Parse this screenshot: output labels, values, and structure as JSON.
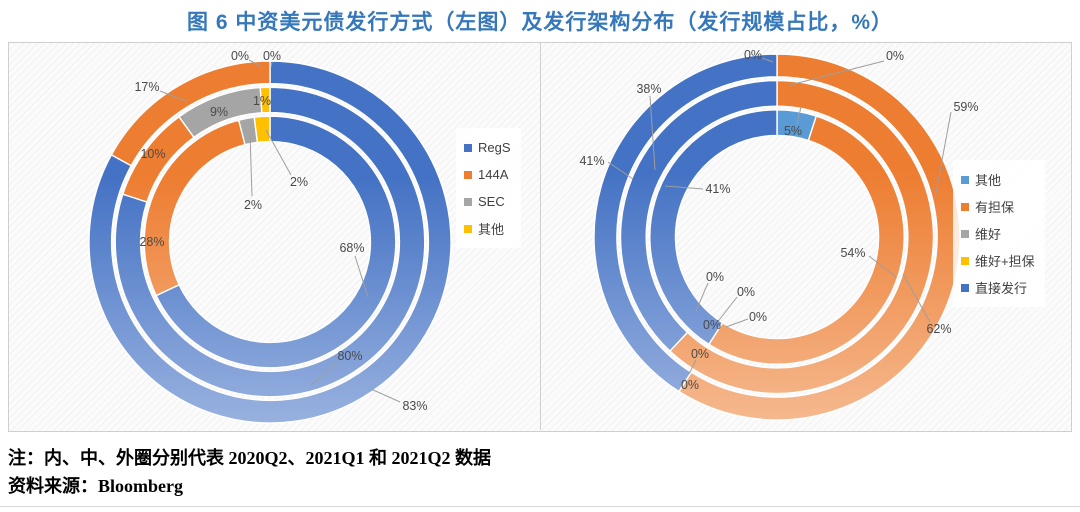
{
  "title": "图 6 中资美元债发行方式（左图）及发行架构分布（发行规模占比，%）",
  "notes": {
    "line1": "注：内、中、外圈分别代表 2020Q2、2021Q1 和 2021Q2 数据",
    "line2": "资料来源：Bloomberg"
  },
  "style": {
    "title_color": "#3577BB",
    "label_color": "#4a4a4a",
    "leader_color": "#9e9e9e",
    "ring_gradient_lighten": 0.45
  },
  "chart_data": [
    {
      "type": "donut",
      "name": "发行方式（左图）",
      "legend_position": "right",
      "rings_meaning": [
        "内圈 = 2020Q2",
        "中圈 = 2021Q1",
        "外圈 = 2021Q2"
      ],
      "series": [
        "RegS",
        "144A",
        "SEC",
        "其他"
      ],
      "series_colors": [
        "#4472C4",
        "#ED7D31",
        "#A5A5A5",
        "#FFC000"
      ],
      "rings": [
        {
          "name": "2020Q2",
          "position": "inner",
          "values": [
            68,
            28,
            2,
            2
          ]
        },
        {
          "name": "2021Q1",
          "position": "middle",
          "values": [
            80,
            10,
            9,
            1
          ]
        },
        {
          "name": "2021Q2",
          "position": "outer",
          "values": [
            83,
            17,
            0,
            0
          ]
        }
      ],
      "unit": "%"
    },
    {
      "type": "donut",
      "name": "发行架构分布",
      "legend_position": "right",
      "rings_meaning": [
        "内圈 = 2020Q2",
        "中圈 = 2021Q1",
        "外圈 = 2021Q2"
      ],
      "series": [
        "其他",
        "有担保",
        "维好",
        "维好+担保",
        "直接发行"
      ],
      "series_colors": [
        "#5B9BD5",
        "#ED7D31",
        "#A5A5A5",
        "#FFC000",
        "#4472C4"
      ],
      "rings": [
        {
          "name": "2020Q2",
          "position": "inner",
          "values": [
            5,
            54,
            0,
            0,
            41
          ]
        },
        {
          "name": "2021Q1",
          "position": "middle",
          "values": [
            0,
            62,
            0,
            0,
            38
          ]
        },
        {
          "name": "2021Q2",
          "position": "outer",
          "values": [
            0,
            59,
            0,
            0,
            41
          ]
        }
      ],
      "unit": "%"
    }
  ]
}
